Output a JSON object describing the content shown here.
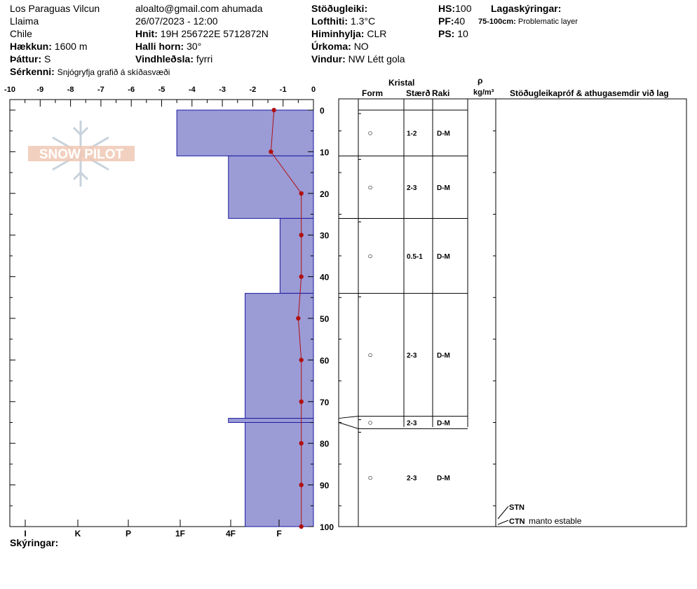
{
  "header": {
    "location": "Los Paraguas Vilcun",
    "subregion": "Llaima",
    "country": "Chile",
    "elevation_label": "Hækkun:",
    "elevation": "1600 m",
    "aspect_label": "Þáttur:",
    "aspect": "S",
    "features_label": "Sérkenni:",
    "features": "Snjógryfja grafið á skíðasvæði",
    "observer": "aloalto@gmail.com ahumada",
    "datetime": "26/07/2023 - 12:00",
    "coords_label": "Hnit:",
    "coords": "19H 256722E 5712872N",
    "slope_label": "Halli horn:",
    "slope": "30°",
    "wind_loading_label": "Vindhleðsla:",
    "wind_loading": "fyrri",
    "stability_label": "Stöðugleiki:",
    "air_temp_label": "Lofthiti:",
    "air_temp": "1.3°C",
    "sky_label": "Himinhylja:",
    "sky": "CLR",
    "precip_label": "Úrkoma:",
    "precip": "NO",
    "wind_label": "Vindur:",
    "wind": "NW Létt gola",
    "hs_label": "HS:",
    "hs": "100",
    "pf_label": "PF:",
    "pf": "40",
    "ps_label": "PS:",
    "ps": "10",
    "layer_notes_label": "Lagaskýringar:",
    "layer_note_range": "75-100cm:",
    "layer_note_text": "Problematic layer"
  },
  "logo": {
    "text": "SNOW PILOT"
  },
  "table_headers": {
    "crystal": "Kristal",
    "form": "Form",
    "size": "Stærð",
    "moisture": "Raki",
    "rho": "ρ",
    "density_unit": "kg/m³",
    "tests": "Stöðugleikapróf & athugasemdir við lag"
  },
  "legend_label": "Skýringar:",
  "colors": {
    "hardness_fill": "#9b9bd6",
    "hardness_stroke": "#1a1aa0",
    "temp_line": "#b01010"
  },
  "tests": [
    {
      "code": "STN",
      "comment": ""
    },
    {
      "code": "CTN",
      "comment": "manto estable"
    }
  ],
  "chart_data": {
    "type": "snow-profile",
    "temperature_axis": {
      "ticks": [
        "-10",
        "-9",
        "-8",
        "-7",
        "-6",
        "-5",
        "-4",
        "-3",
        "-2",
        "-1",
        "0"
      ],
      "range": [
        -10,
        0
      ]
    },
    "depth_axis": {
      "ticks": [
        "0",
        "10",
        "20",
        "30",
        "40",
        "50",
        "60",
        "70",
        "80",
        "90",
        "100"
      ],
      "range": [
        0,
        100
      ]
    },
    "hardness_axis": {
      "ticks": [
        "I",
        "K",
        "P",
        "1F",
        "4F",
        "F"
      ]
    },
    "hardness_layers": [
      {
        "top": 0,
        "bottom": 11,
        "temp_extent": -4.5
      },
      {
        "top": 11,
        "bottom": 26,
        "temp_extent": -2.8
      },
      {
        "top": 26,
        "bottom": 44,
        "temp_extent": -1.1
      },
      {
        "top": 44,
        "bottom": 74,
        "temp_extent": -2.25
      },
      {
        "top": 74,
        "bottom": 75,
        "temp_extent": -2.8
      },
      {
        "top": 75,
        "bottom": 100,
        "temp_extent": -2.25
      }
    ],
    "temperature_profile": [
      {
        "depth": 0,
        "temp": -1.3
      },
      {
        "depth": 10,
        "temp": -1.4
      },
      {
        "depth": 20,
        "temp": -0.4
      },
      {
        "depth": 30,
        "temp": -0.4
      },
      {
        "depth": 40,
        "temp": -0.4
      },
      {
        "depth": 50,
        "temp": -0.5
      },
      {
        "depth": 60,
        "temp": -0.4
      },
      {
        "depth": 70,
        "temp": -0.4
      },
      {
        "depth": 80,
        "temp": -0.4
      },
      {
        "depth": 90,
        "temp": -0.4
      },
      {
        "depth": 100,
        "temp": -0.4
      }
    ],
    "layers": [
      {
        "top": 0,
        "bottom": 11,
        "form": "○",
        "size": "1-2",
        "moisture": "D-M"
      },
      {
        "top": 11,
        "bottom": 26,
        "form": "○",
        "size": "2-3",
        "moisture": "D-M"
      },
      {
        "top": 26,
        "bottom": 44,
        "form": "○",
        "size": "0.5-1",
        "moisture": "D-M"
      },
      {
        "top": 44,
        "bottom": 73.5,
        "form": "○",
        "size": "2-3",
        "moisture": "D-M"
      },
      {
        "top": 73.5,
        "bottom": 76.5,
        "form": "○",
        "size": "2-3",
        "moisture": "D-M"
      },
      {
        "top": 76.5,
        "bottom": 100,
        "form": "○",
        "size": "2-3",
        "moisture": "D-M"
      }
    ]
  }
}
